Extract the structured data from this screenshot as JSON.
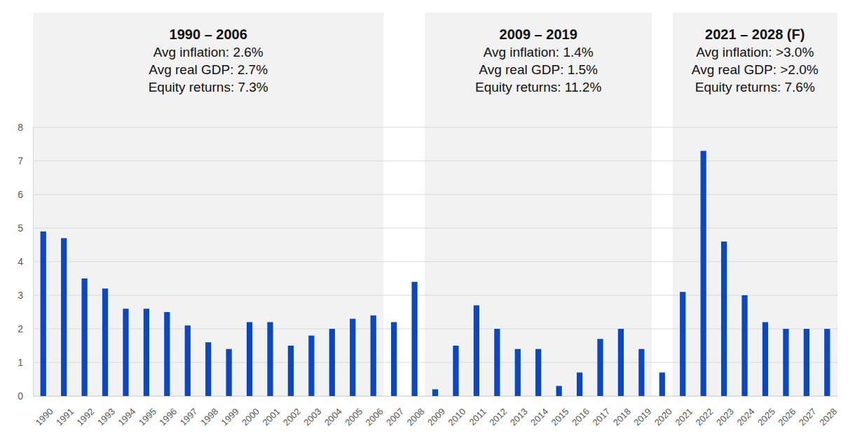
{
  "chart_data": {
    "type": "bar",
    "categories": [
      "1990",
      "1991",
      "1992",
      "1993",
      "1994",
      "1995",
      "1996",
      "1997",
      "1998",
      "1999",
      "2000",
      "2001",
      "2002",
      "2003",
      "2004",
      "2005",
      "2006",
      "2007",
      "2008",
      "2009",
      "2010",
      "2011",
      "2012",
      "2013",
      "2014",
      "2015",
      "2016",
      "2017",
      "2018",
      "2019",
      "2020",
      "2021",
      "2022",
      "2023",
      "2024",
      "2025",
      "2026",
      "2027",
      "2028"
    ],
    "values": [
      4.9,
      4.7,
      3.5,
      3.2,
      2.6,
      2.6,
      2.5,
      2.1,
      1.6,
      1.4,
      2.2,
      2.2,
      1.5,
      1.8,
      2.0,
      2.3,
      2.4,
      2.2,
      3.4,
      0.2,
      1.5,
      2.7,
      2.0,
      1.4,
      1.4,
      0.3,
      0.7,
      1.7,
      2.0,
      1.4,
      0.7,
      3.1,
      7.3,
      4.6,
      3.0,
      2.2,
      2.0,
      2.0,
      2.0
    ],
    "color": "#0a47c2",
    "ylim": [
      0,
      8
    ],
    "yticks": [
      0,
      1,
      2,
      3,
      4,
      5,
      6,
      7,
      8
    ],
    "grid": true,
    "periods": [
      {
        "start": "1990",
        "end": "2006",
        "title": "1990 – 2006",
        "lines": [
          "Avg inflation: 2.6%",
          "Avg real GDP: 2.7%",
          "Equity returns: 7.3%"
        ]
      },
      {
        "start": "2009",
        "end": "2019",
        "title": "2009 – 2019",
        "lines": [
          "Avg inflation: 1.4%",
          "Avg real GDP: 1.5%",
          "Equity returns: 11.2%"
        ]
      },
      {
        "start": "2021",
        "end": "2028",
        "title": "2021 – 2028 (F)",
        "lines": [
          "Avg inflation: >3.0%",
          "Avg real GDP: >2.0%",
          "Equity returns: 7.6%"
        ]
      }
    ]
  }
}
